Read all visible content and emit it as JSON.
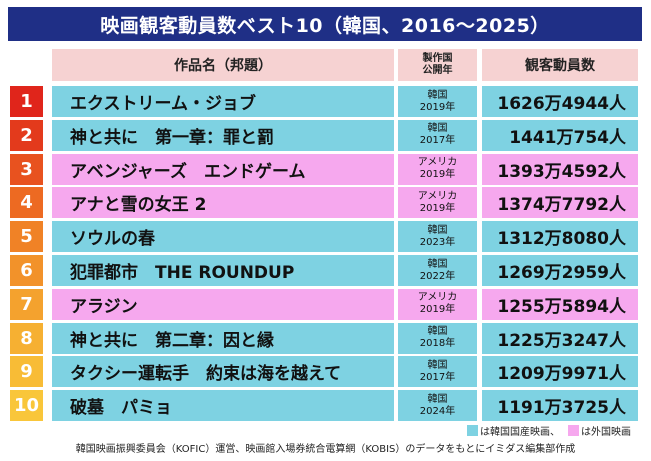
{
  "title": "映画観客動員数ベスト10（韓国、2016～2025）",
  "headers": {
    "title": "作品名（邦題）",
    "year_line1": "製作国",
    "year_line2": "公開年",
    "audience": "観客動員数"
  },
  "colors": {
    "title_bg": "#1f2f86",
    "header_bg": "#f6d2d2",
    "korean": "#7ed2e2",
    "foreign": "#f6a8ee",
    "rank_colors": [
      "#e0251b",
      "#e33a1c",
      "#e8521f",
      "#ed6a22",
      "#f08226",
      "#f2922a",
      "#f4a22e",
      "#f6b032",
      "#f8bc36",
      "#f9c63a"
    ]
  },
  "rows": [
    {
      "rank": "1",
      "title": "エクストリーム・ジョブ",
      "country": "韓国",
      "year": "2019年",
      "audience": "1626万4944人",
      "type": "korean"
    },
    {
      "rank": "2",
      "title": "神と共に　第一章：罪と罰",
      "country": "韓国",
      "year": "2017年",
      "audience": "1441万754人",
      "type": "korean"
    },
    {
      "rank": "3",
      "title": "アベンジャーズ　エンドゲーム",
      "country": "アメリカ",
      "year": "2019年",
      "audience": "1393万4592人",
      "type": "foreign"
    },
    {
      "rank": "4",
      "title": "アナと雪の女王 2",
      "country": "アメリカ",
      "year": "2019年",
      "audience": "1374万7792人",
      "type": "foreign"
    },
    {
      "rank": "5",
      "title": "ソウルの春",
      "country": "韓国",
      "year": "2023年",
      "audience": "1312万8080人",
      "type": "korean"
    },
    {
      "rank": "6",
      "title": "犯罪都市　THE ROUNDUP",
      "country": "韓国",
      "year": "2022年",
      "audience": "1269万2959人",
      "type": "korean"
    },
    {
      "rank": "7",
      "title": "アラジン",
      "country": "アメリカ",
      "year": "2019年",
      "audience": "1255万5894人",
      "type": "foreign"
    },
    {
      "rank": "8",
      "title": "神と共に　第二章：因と縁",
      "country": "韓国",
      "year": "2018年",
      "audience": "1225万3247人",
      "type": "korean"
    },
    {
      "rank": "9",
      "title": "タクシー運転手　約束は海を越えて",
      "country": "韓国",
      "year": "2017年",
      "audience": "1209万9971人",
      "type": "korean"
    },
    {
      "rank": "10",
      "title": "破墓　パミョ",
      "country": "韓国",
      "year": "2024年",
      "audience": "1191万3725人",
      "type": "korean"
    }
  ],
  "legend": {
    "korean": "は韓国国産映画、",
    "foreign": "は外国映画"
  },
  "source": "韓国映画振興委員会（KOFIC）運営、映画館入場券統合電算網（KOBIS）のデータをもとにイミダス編集部作成"
}
